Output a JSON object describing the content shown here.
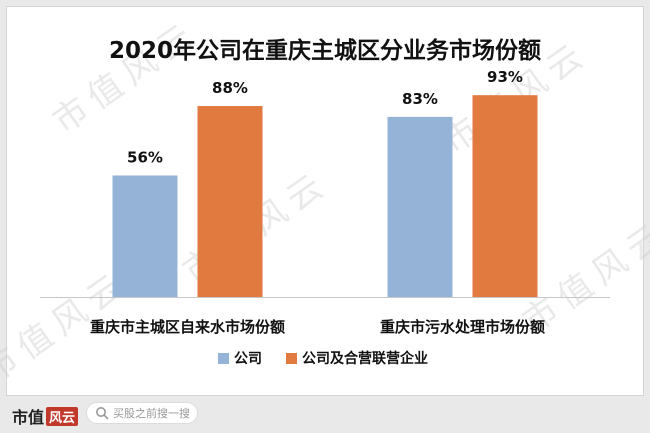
{
  "chart_data": {
    "type": "bar",
    "title": "2020年公司在重庆主城区分业务市场份额",
    "categories": [
      "重庆市主城区自来水市场份额",
      "重庆市污水处理市场份额"
    ],
    "series": [
      {
        "name": "公司",
        "values": [
          56,
          83
        ],
        "color": "#95b3d7"
      },
      {
        "name": "公司及合营联营企业",
        "values": [
          88,
          93
        ],
        "color": "#e07a3f"
      }
    ],
    "value_suffix": "%",
    "ylim": [
      0,
      100
    ],
    "grid": false,
    "legend_position": "bottom"
  },
  "watermark": "市值风云",
  "footer": {
    "brand": "市值",
    "brand_mark": "风云",
    "search_placeholder": "买股之前搜一搜"
  }
}
